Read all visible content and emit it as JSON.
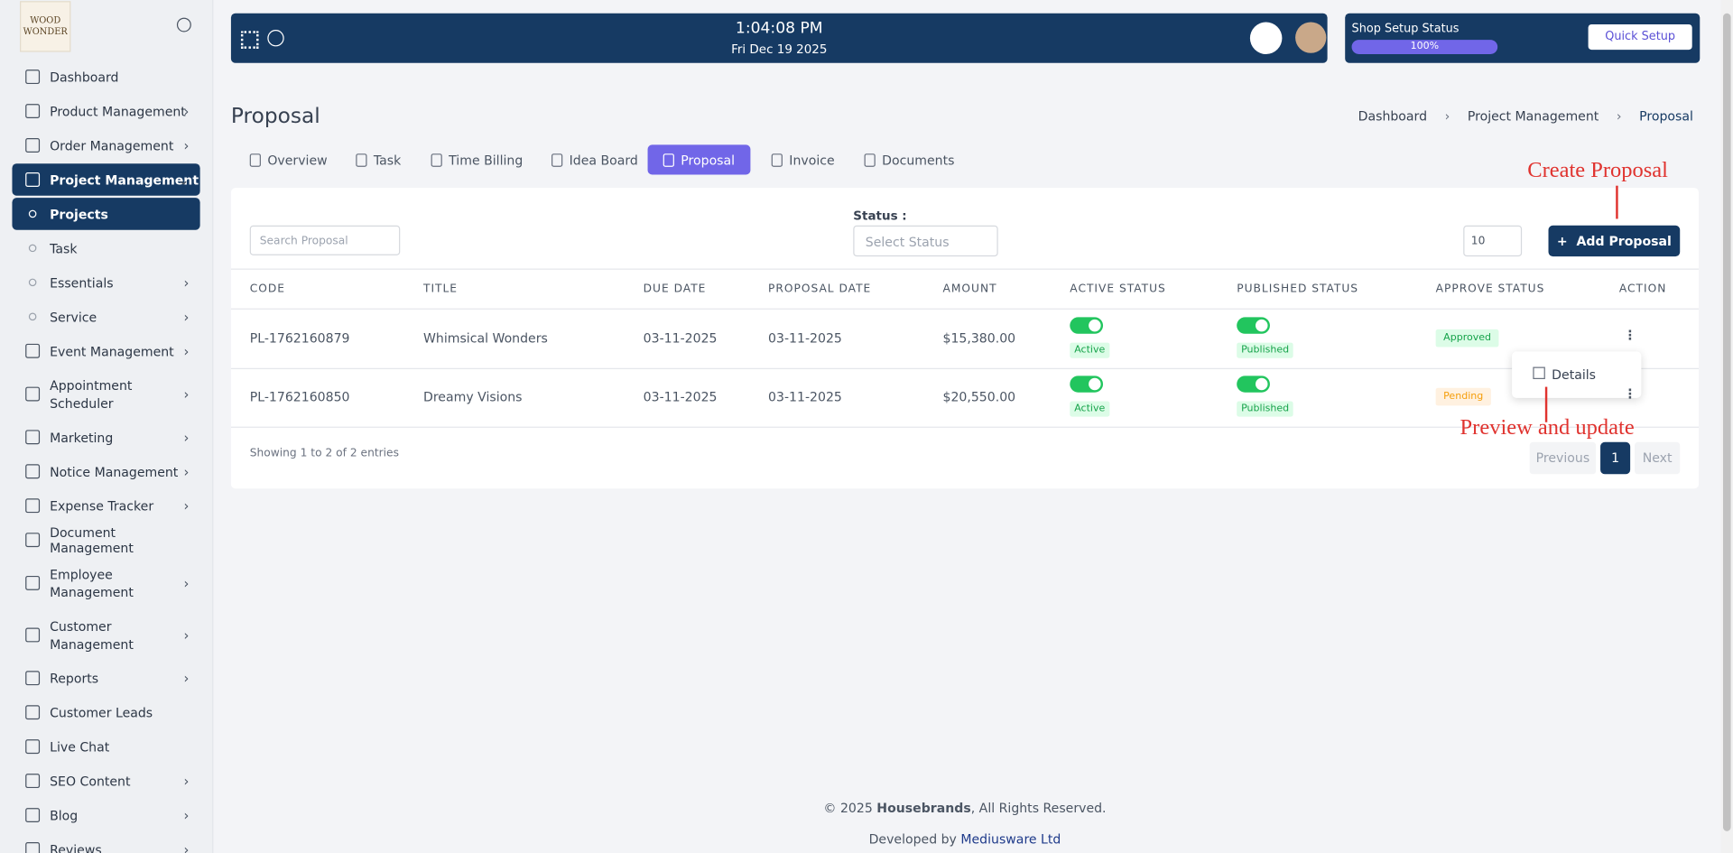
{
  "sidebar": {
    "logo": [
      "WOOD",
      "WONDER"
    ],
    "menu": [
      {
        "label": "Dashboard",
        "level": 1,
        "submenu": false
      },
      {
        "label": "Product Management",
        "level": 1,
        "submenu": true
      },
      {
        "label": "Order Management",
        "level": 1,
        "submenu": true
      },
      {
        "label": "Project Management",
        "level": 1,
        "submenu": true,
        "active": true
      },
      {
        "label": "Projects",
        "level": 2,
        "submenu": false,
        "active": true
      },
      {
        "label": "Task",
        "level": 2,
        "submenu": false
      },
      {
        "label": "Essentials",
        "level": 2,
        "submenu": true
      },
      {
        "label": "Service",
        "level": 2,
        "submenu": true
      },
      {
        "label": "Event Management",
        "level": 1,
        "submenu": true
      },
      {
        "label": "Appointment Scheduler",
        "level": 1,
        "submenu": true
      },
      {
        "label": "Marketing",
        "level": 1,
        "submenu": true
      },
      {
        "label": "Notice Management",
        "level": 1,
        "submenu": true
      },
      {
        "label": "Expense Tracker",
        "level": 1,
        "submenu": true
      },
      {
        "label": "Document Management",
        "level": 1,
        "submenu": false
      },
      {
        "label": "Employee Management",
        "level": 1,
        "submenu": true
      },
      {
        "label": "Customer Management",
        "level": 1,
        "submenu": true
      },
      {
        "label": "Reports",
        "level": 1,
        "submenu": true
      },
      {
        "label": "Customer Leads",
        "level": 1,
        "submenu": false
      },
      {
        "label": "Live Chat",
        "level": 1,
        "submenu": false
      },
      {
        "label": "SEO Content",
        "level": 1,
        "submenu": true
      },
      {
        "label": "Blog",
        "level": 1,
        "submenu": true
      },
      {
        "label": "Reviews",
        "level": 1,
        "submenu": true
      }
    ]
  },
  "topbar": {
    "time": "1:04:08 PM",
    "date": "Fri Dec 19 2025",
    "shop_setup_title": "Shop Setup Status",
    "shop_setup_progress": "100%",
    "quick_setup": "Quick Setup"
  },
  "header": {
    "title": "Proposal",
    "breadcrumb": [
      "Dashboard",
      "Project Management",
      "Proposal"
    ]
  },
  "tabs": [
    {
      "label": "Overview"
    },
    {
      "label": "Task"
    },
    {
      "label": "Time Billing"
    },
    {
      "label": "Idea Board"
    },
    {
      "label": "Proposal",
      "active": true
    },
    {
      "label": "Invoice"
    },
    {
      "label": "Documents"
    }
  ],
  "filters": {
    "search_placeholder": "Search Proposal",
    "status_label": "Status :",
    "status_placeholder": "Select Status",
    "page_size": "10",
    "add_button": "Add Proposal"
  },
  "table": {
    "columns": [
      "CODE",
      "TITLE",
      "DUE DATE",
      "PROPOSAL DATE",
      "AMOUNT",
      "ACTIVE STATUS",
      "PUBLISHED STATUS",
      "APPROVE STATUS",
      "ACTION"
    ],
    "rows": [
      {
        "code": "PL-1762160879",
        "title": "Whimsical Wonders",
        "due_date": "03-11-2025",
        "proposal_date": "03-11-2025",
        "amount": "$15,380.00",
        "active": "Active",
        "published": "Published",
        "approve": "Approved"
      },
      {
        "code": "PL-1762160850",
        "title": "Dreamy Visions",
        "due_date": "03-11-2025",
        "proposal_date": "03-11-2025",
        "amount": "$20,550.00",
        "active": "Active",
        "published": "Published",
        "approve": "Pending"
      }
    ],
    "action_menu": [
      "Details"
    ],
    "summary": "Showing 1 to 2 of 2 entries",
    "pagination": {
      "previous": "Previous",
      "page": "1",
      "next": "Next"
    }
  },
  "annotations": {
    "create": "Create Proposal",
    "preview": "Preview and update"
  },
  "footer": {
    "copyright_prefix": "© 2025",
    "company": "Housebrands",
    "rights": ", All Rights Reserved.",
    "developed_prefix": "Developed by",
    "developer": "Mediusware Ltd"
  }
}
